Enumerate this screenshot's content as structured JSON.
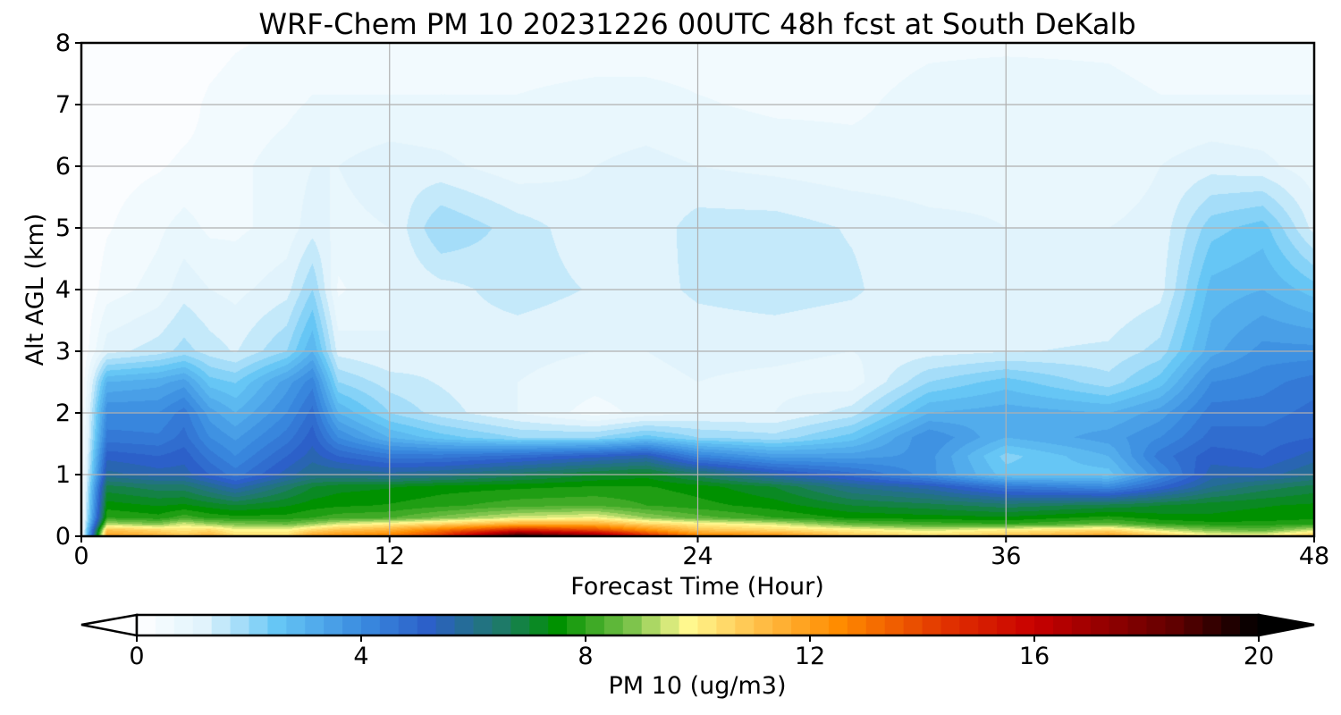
{
  "chart_data": {
    "type": "heatmap",
    "title": "WRF-Chem PM 10  20231226 00UTC 48h fcst at South DeKalb",
    "xlabel": "Forecast Time (Hour)",
    "ylabel": "Alt AGL (km)",
    "xlim": [
      0,
      48
    ],
    "ylim": [
      0,
      8
    ],
    "xticks": [
      "0",
      "12",
      "24",
      "36",
      "48"
    ],
    "yticks": [
      "0",
      "1",
      "2",
      "3",
      "4",
      "5",
      "6",
      "7",
      "8"
    ],
    "grid": true,
    "colorbar": {
      "label": "PM 10  (ug/m3)",
      "min": 0,
      "max": 20,
      "ticks": [
        "0",
        "4",
        "8",
        "12",
        "16",
        "20"
      ],
      "extend": "both",
      "stops": [
        {
          "v": 0,
          "c": "#ffffff"
        },
        {
          "v": 1.2,
          "c": "#e0f3fc"
        },
        {
          "v": 2.5,
          "c": "#66c6f5"
        },
        {
          "v": 4.0,
          "c": "#3a8ce0"
        },
        {
          "v": 5.2,
          "c": "#2c5fc8"
        },
        {
          "v": 6.5,
          "c": "#1e7a68"
        },
        {
          "v": 7.5,
          "c": "#009100"
        },
        {
          "v": 8.8,
          "c": "#7ac24a"
        },
        {
          "v": 9.8,
          "c": "#fffa90"
        },
        {
          "v": 11.0,
          "c": "#ffc24d"
        },
        {
          "v": 12.5,
          "c": "#ff8c00"
        },
        {
          "v": 14.5,
          "c": "#e03000"
        },
        {
          "v": 16.0,
          "c": "#c80000"
        },
        {
          "v": 18.5,
          "c": "#600000"
        },
        {
          "v": 20,
          "c": "#000000"
        }
      ]
    },
    "hours": [
      0,
      1,
      3,
      4,
      5,
      6,
      8,
      9,
      10,
      12,
      14,
      17,
      20,
      22,
      24,
      27,
      30,
      33,
      36,
      40,
      42,
      44,
      46,
      48
    ],
    "altitudes_km": [
      0,
      0.1,
      0.2,
      0.3,
      0.5,
      0.8,
      1.0,
      1.3,
      1.6,
      2.0,
      2.5,
      3.0,
      4.0,
      5.0,
      6.0,
      7.0,
      8.0
    ],
    "pm10": [
      [
        0.0,
        12.0,
        11.5,
        11.0,
        11.5,
        10.5,
        10.5,
        12.0,
        12.5,
        13.0,
        14.5,
        20.0,
        18.0,
        15.0,
        13.0,
        12.5,
        11.0,
        10.5,
        11.0,
        12.0,
        11.0,
        10.0,
        10.0,
        11.0
      ],
      [
        0.0,
        11.0,
        10.5,
        10.2,
        10.5,
        9.8,
        9.8,
        10.5,
        11.0,
        11.5,
        13.0,
        15.0,
        14.0,
        12.5,
        11.0,
        10.5,
        10.0,
        9.5,
        10.0,
        10.5,
        9.5,
        8.8,
        8.5,
        9.5
      ],
      [
        0.0,
        9.2,
        8.8,
        9.5,
        9.0,
        8.8,
        8.6,
        9.0,
        9.5,
        10.0,
        10.5,
        11.5,
        11.5,
        10.5,
        10.0,
        9.5,
        8.5,
        8.2,
        8.0,
        8.5,
        8.0,
        7.8,
        7.8,
        7.9
      ],
      [
        0.0,
        8.0,
        7.8,
        8.2,
        7.9,
        7.8,
        7.8,
        8.0,
        8.2,
        8.3,
        8.8,
        9.5,
        9.8,
        9.0,
        8.5,
        8.0,
        7.6,
        7.5,
        7.4,
        7.8,
        7.5,
        7.4,
        7.5,
        7.6
      ],
      [
        0.0,
        7.5,
        7.3,
        7.4,
        7.2,
        7.0,
        7.3,
        7.5,
        7.6,
        7.7,
        7.9,
        8.2,
        8.3,
        8.0,
        7.8,
        7.5,
        7.0,
        6.8,
        6.5,
        6.8,
        7.0,
        7.2,
        7.3,
        7.4
      ],
      [
        0.0,
        6.8,
        6.5,
        6.5,
        6.0,
        5.5,
        6.5,
        7.0,
        7.2,
        7.3,
        7.5,
        7.6,
        7.7,
        7.7,
        7.5,
        7.0,
        6.0,
        5.5,
        4.5,
        4.0,
        5.0,
        6.0,
        6.5,
        6.8
      ],
      [
        0.0,
        5.8,
        5.5,
        5.5,
        5.0,
        4.5,
        5.5,
        6.0,
        6.0,
        5.8,
        6.0,
        6.5,
        7.0,
        7.2,
        6.5,
        5.5,
        4.8,
        3.8,
        2.5,
        2.5,
        4.0,
        5.5,
        5.5,
        6.0
      ],
      [
        0.0,
        5.2,
        5.0,
        5.2,
        4.5,
        4.0,
        5.0,
        5.5,
        5.0,
        4.5,
        4.5,
        4.8,
        5.2,
        5.5,
        4.2,
        3.5,
        3.5,
        3.8,
        2.2,
        3.0,
        4.5,
        5.2,
        5.0,
        5.5
      ],
      [
        0.0,
        4.5,
        4.4,
        4.8,
        4.0,
        3.6,
        4.5,
        5.2,
        4.0,
        3.0,
        2.5,
        2.0,
        2.0,
        2.5,
        2.0,
        1.8,
        2.5,
        4.0,
        3.0,
        3.5,
        4.0,
        4.8,
        4.8,
        5.0
      ],
      [
        0.0,
        4.0,
        4.0,
        4.5,
        3.5,
        3.0,
        4.0,
        4.8,
        3.0,
        2.0,
        1.5,
        1.0,
        0.5,
        0.8,
        1.0,
        1.0,
        1.5,
        3.0,
        3.2,
        3.0,
        3.5,
        4.5,
        4.5,
        4.8
      ],
      [
        0.0,
        3.0,
        3.2,
        3.5,
        2.5,
        2.3,
        3.5,
        4.2,
        2.0,
        1.5,
        1.3,
        1.0,
        0.8,
        0.9,
        1.0,
        0.9,
        0.8,
        2.0,
        2.5,
        1.8,
        2.5,
        4.0,
        4.2,
        4.5
      ],
      [
        0.0,
        1.2,
        1.5,
        1.8,
        1.5,
        1.3,
        2.0,
        3.0,
        1.2,
        1.0,
        1.2,
        1.1,
        1.0,
        1.0,
        1.1,
        1.1,
        1.0,
        1.2,
        1.3,
        1.4,
        1.8,
        3.2,
        3.8,
        3.8
      ],
      [
        0.0,
        0.5,
        0.8,
        1.2,
        1.0,
        0.9,
        1.2,
        2.0,
        0.6,
        1.0,
        1.2,
        1.5,
        1.3,
        1.2,
        1.4,
        1.5,
        1.4,
        1.0,
        1.0,
        1.0,
        1.2,
        2.8,
        3.0,
        2.5
      ],
      [
        0.0,
        0.3,
        0.6,
        0.8,
        0.6,
        0.6,
        0.8,
        1.2,
        0.9,
        1.0,
        2.0,
        1.5,
        1.1,
        1.1,
        1.5,
        1.5,
        1.3,
        1.1,
        1.0,
        1.0,
        1.1,
        2.2,
        2.5,
        1.2
      ],
      [
        0.0,
        0.2,
        0.3,
        0.4,
        0.4,
        0.6,
        0.8,
        1.0,
        1.0,
        1.2,
        1.1,
        0.8,
        1.0,
        1.1,
        1.0,
        0.9,
        0.8,
        0.8,
        0.9,
        0.8,
        1.0,
        1.2,
        1.1,
        0.8
      ],
      [
        0.0,
        0.1,
        0.1,
        0.2,
        0.4,
        0.5,
        0.6,
        0.7,
        0.7,
        0.7,
        0.7,
        0.7,
        0.8,
        0.8,
        0.7,
        0.6,
        0.6,
        0.8,
        0.9,
        0.8,
        0.7,
        0.7,
        0.7,
        0.7
      ],
      [
        0.0,
        0.1,
        0.1,
        0.1,
        0.2,
        0.3,
        0.4,
        0.5,
        0.5,
        0.5,
        0.5,
        0.5,
        0.5,
        0.5,
        0.5,
        0.5,
        0.5,
        0.6,
        0.6,
        0.6,
        0.5,
        0.5,
        0.5,
        0.5
      ]
    ]
  }
}
